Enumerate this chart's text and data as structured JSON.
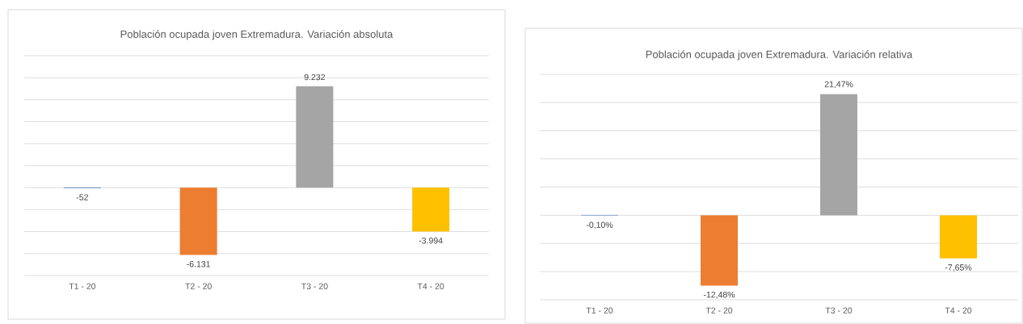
{
  "chart_data": [
    {
      "type": "bar",
      "title": "Población ocupada joven Extremadura. Variación absoluta",
      "categories": [
        "T1 - 20",
        "T2 - 20",
        "T3 - 20",
        "T4 - 20"
      ],
      "values": [
        -52,
        -6131,
        9232,
        -3994
      ],
      "value_labels": [
        "-52",
        "-6.131",
        "9.232",
        "-3.994"
      ],
      "colors": [
        "#4472c4",
        "#ed7d31",
        "#a5a5a5",
        "#ffc000"
      ],
      "ylim": [
        -8000,
        12000
      ],
      "yticks": [
        {
          "value": -8000,
          "label": null
        },
        {
          "value": -6000,
          "label": null
        },
        {
          "value": -4000,
          "label": null
        },
        {
          "value": -2000,
          "label": null
        },
        {
          "value": 0,
          "label": null
        },
        {
          "value": 2000,
          "label": null
        },
        {
          "value": 4000,
          "label": null
        },
        {
          "value": 6000,
          "label": null
        },
        {
          "value": 8000,
          "label": null
        },
        {
          "value": 10000,
          "label": null
        },
        {
          "value": 12000,
          "label": null
        }
      ],
      "grid": "y",
      "tick_labels": "x"
    },
    {
      "type": "bar",
      "title": "Población ocupada joven Extremadura. Variación relativa",
      "categories": [
        "T1 - 20",
        "T2 - 20",
        "T3 - 20",
        "T4 - 20"
      ],
      "values": [
        -0.1,
        -12.48,
        21.47,
        -7.65
      ],
      "value_labels": [
        "-0,10%",
        "-12,48%",
        "21,47%",
        "-7,65%"
      ],
      "colors": [
        "#4472c4",
        "#ed7d31",
        "#a5a5a5",
        "#ffc000"
      ],
      "ylim": [
        -15,
        25
      ],
      "yticks": [
        {
          "value": -15,
          "label": null
        },
        {
          "value": -10,
          "label": null
        },
        {
          "value": -5,
          "label": null
        },
        {
          "value": 0,
          "label": null
        },
        {
          "value": 5,
          "label": null
        },
        {
          "value": 10,
          "label": null
        },
        {
          "value": 15,
          "label": null
        },
        {
          "value": 20,
          "label": null
        },
        {
          "value": 25,
          "label": null
        }
      ],
      "grid": "y",
      "tick_labels": "x"
    }
  ]
}
